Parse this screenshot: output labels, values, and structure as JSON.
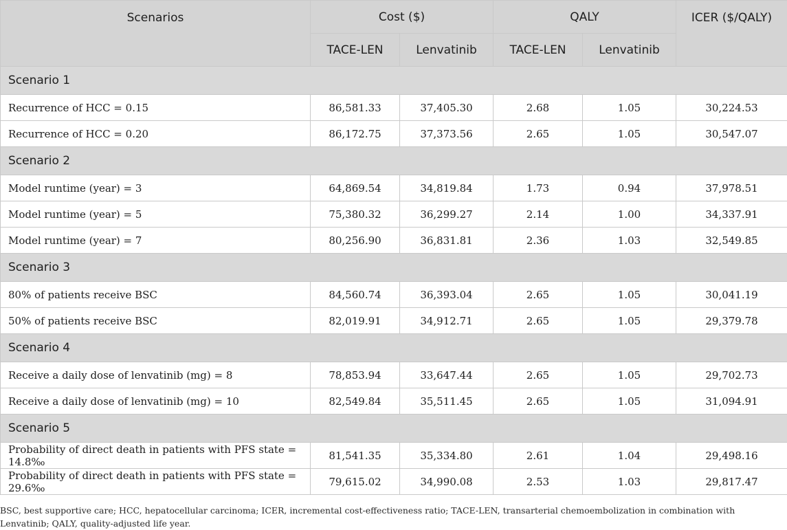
{
  "header": {
    "scenarios": "Scenarios",
    "cost": "Cost ($)",
    "qaly": "QALY",
    "icer": "ICER ($/QALY)",
    "sub": [
      "TACE-LEN",
      "Lenvatinib",
      "TACE-LEN",
      "Lenvatinib"
    ]
  },
  "sections": [
    {
      "title": "Scenario 1",
      "rows": [
        [
          "Recurrence of HCC = 0.15",
          "86,581.33",
          "37,405.30",
          "2.68",
          "1.05",
          "30,224.53"
        ],
        [
          "Recurrence of HCC = 0.20",
          "86,172.75",
          "37,373.56",
          "2.65",
          "1.05",
          "30,547.07"
        ]
      ]
    },
    {
      "title": "Scenario 2",
      "rows": [
        [
          "Model runtime (year) = 3",
          "64,869.54",
          "34,819.84",
          "1.73",
          "0.94",
          "37,978.51"
        ],
        [
          "Model runtime (year) = 5",
          "75,380.32",
          "36,299.27",
          "2.14",
          "1.00",
          "34,337.91"
        ],
        [
          "Model runtime (year) = 7",
          "80,256.90",
          "36,831.81",
          "2.36",
          "1.03",
          "32,549.85"
        ]
      ]
    },
    {
      "title": "Scenario 3",
      "rows": [
        [
          "80% of patients receive BSC",
          "84,560.74",
          "36,393.04",
          "2.65",
          "1.05",
          "30,041.19"
        ],
        [
          "50% of patients receive BSC",
          "82,019.91",
          "34,912.71",
          "2.65",
          "1.05",
          "29,379.78"
        ]
      ]
    },
    {
      "title": "Scenario 4",
      "rows": [
        [
          "Receive a daily dose of lenvatinib (mg) = 8",
          "78,853.94",
          "33,647.44",
          "2.65",
          "1.05",
          "29,702.73"
        ],
        [
          "Receive a daily dose of lenvatinib (mg) = 10",
          "82,549.84",
          "35,511.45",
          "2.65",
          "1.05",
          "31,094.91"
        ]
      ]
    },
    {
      "title": "Scenario 5",
      "rows": [
        [
          "Probability of direct death in patients with PFS state = 14.8‰",
          "81,541.35",
          "35,334.80",
          "2.61",
          "1.04",
          "29,498.16"
        ],
        [
          "Probability of direct death in patients with PFS state = 29.6‰",
          "79,615.02",
          "34,990.08",
          "2.53",
          "1.03",
          "29,817.47"
        ]
      ]
    }
  ],
  "footnote": "BSC, best supportive care; HCC, hepatocellular carcinoma; ICER, incremental cost-effectiveness ratio; TACE-LEN, transarterial chemoembolization in combination with Lenvatinib; QALY, quality-adjusted life year."
}
